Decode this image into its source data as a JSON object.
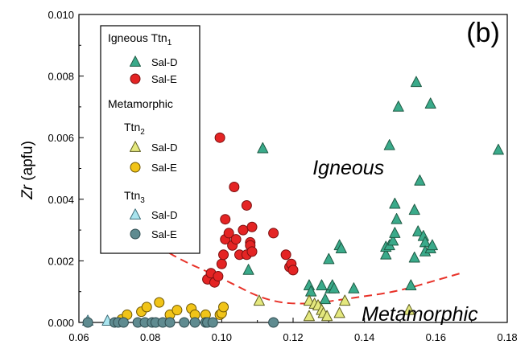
{
  "chart_data": {
    "type": "scatter",
    "panel_label": "(b)",
    "ylabel": "Zr (apfu)",
    "xlim": [
      0.06,
      0.18
    ],
    "ylim": [
      0.0,
      0.01
    ],
    "xticks": [
      "0.06",
      "0.08",
      "0.10",
      "0.12",
      "0.14",
      "0.16",
      "0.18"
    ],
    "yticks": [
      "0.000",
      "0.002",
      "0.004",
      "0.006",
      "0.008",
      "0.010"
    ],
    "annotations": [
      {
        "text": "Igneous",
        "x": 0.1355,
        "y": 0.0048
      },
      {
        "text": "Metamorphic",
        "x": 0.1555,
        "y": 5e-05
      }
    ],
    "legend": {
      "placement": "top-left",
      "groups": [
        {
          "heading": "Igneous Ttn",
          "subscript": "1",
          "items": [
            {
              "label": "Sal-D",
              "series": "ign_sald"
            },
            {
              "label": "Sal-E",
              "series": "ign_sale"
            }
          ]
        },
        {
          "heading": "Metamorphic",
          "subscript": "",
          "items": []
        },
        {
          "heading": "Ttn",
          "subscript": "2",
          "items": [
            {
              "label": "Sal-D",
              "series": "met2_sald"
            },
            {
              "label": "Sal-E",
              "series": "met2_sale"
            }
          ]
        },
        {
          "heading": "Ttn",
          "subscript": "3",
          "items": [
            {
              "label": "Sal-D",
              "series": "met3_sald"
            },
            {
              "label": "Sal-E",
              "series": "met3_sale"
            }
          ]
        }
      ]
    },
    "boundary_curve": {
      "style": "dashed",
      "color": "#e8332a",
      "points": [
        [
          0.076,
          0.0029
        ],
        [
          0.083,
          0.0024
        ],
        [
          0.09,
          0.00195
        ],
        [
          0.097,
          0.0016
        ],
        [
          0.104,
          0.0012
        ],
        [
          0.11,
          0.00085
        ],
        [
          0.116,
          0.00065
        ],
        [
          0.122,
          0.0006
        ],
        [
          0.128,
          0.00065
        ],
        [
          0.134,
          0.00075
        ],
        [
          0.14,
          0.00085
        ],
        [
          0.146,
          0.00095
        ],
        [
          0.152,
          0.0011
        ],
        [
          0.158,
          0.0013
        ],
        [
          0.164,
          0.0015
        ],
        [
          0.167,
          0.0016
        ]
      ]
    },
    "series": [
      {
        "name": "Sal-D",
        "key": "ign_sald",
        "marker": "triangle",
        "color": "#3aaa8a",
        "stroke": "#1f5a44",
        "points": [
          [
            0.1115,
            0.00565
          ],
          [
            0.1075,
            0.0017
          ],
          [
            0.1245,
            0.0012
          ],
          [
            0.125,
            0.001
          ],
          [
            0.128,
            0.0012
          ],
          [
            0.129,
            0.00075
          ],
          [
            0.13,
            0.00205
          ],
          [
            0.1305,
            0.0011
          ],
          [
            0.131,
            0.0012
          ],
          [
            0.1315,
            0.0011
          ],
          [
            0.133,
            0.0025
          ],
          [
            0.1335,
            0.0024
          ],
          [
            0.137,
            0.0011
          ],
          [
            0.147,
            0.00575
          ],
          [
            0.146,
            0.0022
          ],
          [
            0.146,
            0.00245
          ],
          [
            0.147,
            0.0025
          ],
          [
            0.148,
            0.00265
          ],
          [
            0.1485,
            0.00385
          ],
          [
            0.149,
            0.00335
          ],
          [
            0.1485,
            0.0029
          ],
          [
            0.1495,
            0.007
          ],
          [
            0.153,
            0.0012
          ],
          [
            0.154,
            0.00365
          ],
          [
            0.1545,
            0.0078
          ],
          [
            0.155,
            0.00295
          ],
          [
            0.154,
            0.0021
          ],
          [
            0.1555,
            0.0046
          ],
          [
            0.1565,
            0.0028
          ],
          [
            0.157,
            0.0026
          ],
          [
            0.157,
            0.0023
          ],
          [
            0.1585,
            0.0071
          ],
          [
            0.1585,
            0.0024
          ],
          [
            0.159,
            0.0025
          ],
          [
            0.1775,
            0.0056
          ]
        ]
      },
      {
        "name": "Sal-E",
        "key": "ign_sale",
        "marker": "circle",
        "color": "#e42424",
        "stroke": "#7a1010",
        "points": [
          [
            0.096,
            0.0014
          ],
          [
            0.097,
            0.0016
          ],
          [
            0.098,
            0.0013
          ],
          [
            0.099,
            0.0015
          ],
          [
            0.0995,
            0.006
          ],
          [
            0.1,
            0.0019
          ],
          [
            0.1005,
            0.0022
          ],
          [
            0.101,
            0.00335
          ],
          [
            0.101,
            0.0027
          ],
          [
            0.102,
            0.0029
          ],
          [
            0.103,
            0.0025
          ],
          [
            0.1035,
            0.0044
          ],
          [
            0.104,
            0.0027
          ],
          [
            0.105,
            0.0022
          ],
          [
            0.106,
            0.003
          ],
          [
            0.107,
            0.0022
          ],
          [
            0.107,
            0.0038
          ],
          [
            0.108,
            0.0026
          ],
          [
            0.1085,
            0.0031
          ],
          [
            0.108,
            0.0025
          ],
          [
            0.1085,
            0.0023
          ],
          [
            0.1145,
            0.0029
          ],
          [
            0.118,
            0.0022
          ],
          [
            0.119,
            0.0018
          ],
          [
            0.1195,
            0.0019
          ],
          [
            0.12,
            0.0017
          ]
        ]
      },
      {
        "name": "Sal-D",
        "key": "met2_sald",
        "marker": "triangle",
        "color": "#e4e87e",
        "stroke": "#5e5e20",
        "points": [
          [
            0.1105,
            0.0007
          ],
          [
            0.1245,
            0.0007
          ],
          [
            0.1245,
            0.0002
          ],
          [
            0.126,
            0.0006
          ],
          [
            0.127,
            0.00055
          ],
          [
            0.128,
            0.0004
          ],
          [
            0.1285,
            0.0003
          ],
          [
            0.1295,
            0.0002
          ],
          [
            0.133,
            0.0003
          ],
          [
            0.1345,
            0.0007
          ],
          [
            0.1525,
            0.0004
          ]
        ]
      },
      {
        "name": "Sal-E",
        "key": "met2_sale",
        "marker": "circle",
        "color": "#f1c418",
        "stroke": "#6e5600",
        "points": [
          [
            0.072,
            0.0001
          ],
          [
            0.0735,
            0.00025
          ],
          [
            0.0775,
            0.00035
          ],
          [
            0.079,
            0.0005
          ],
          [
            0.0825,
            0.00065
          ],
          [
            0.0855,
            0.00025
          ],
          [
            0.0875,
            0.0004
          ],
          [
            0.0915,
            0.00045
          ],
          [
            0.0925,
            0.00025
          ],
          [
            0.0955,
            0.00025
          ],
          [
            0.0995,
            0.00025
          ],
          [
            0.1,
            0.0003
          ],
          [
            0.1005,
            0.0005
          ]
        ]
      },
      {
        "name": "Sal-D",
        "key": "met3_sald",
        "marker": "triangle",
        "color": "#a9e4ee",
        "stroke": "#3d6d78",
        "points": [
          [
            0.0625,
            5e-05
          ],
          [
            0.068,
            5e-05
          ]
        ]
      },
      {
        "name": "Sal-E",
        "key": "met3_sale",
        "marker": "circle",
        "color": "#5f8b90",
        "stroke": "#2f4c50",
        "points": [
          [
            0.0625,
            0.0
          ],
          [
            0.07,
            0.0
          ],
          [
            0.071,
            0.0
          ],
          [
            0.0725,
            0.0
          ],
          [
            0.0765,
            0.0
          ],
          [
            0.0785,
            0.0
          ],
          [
            0.0805,
            0.0
          ],
          [
            0.0815,
            0.0
          ],
          [
            0.0835,
            0.0
          ],
          [
            0.0855,
            0.0
          ],
          [
            0.0895,
            0.0
          ],
          [
            0.0925,
            0.0
          ],
          [
            0.0955,
            0.0
          ],
          [
            0.096,
            0.0
          ],
          [
            0.0975,
            0.0
          ],
          [
            0.1145,
            0.0
          ]
        ]
      }
    ]
  }
}
